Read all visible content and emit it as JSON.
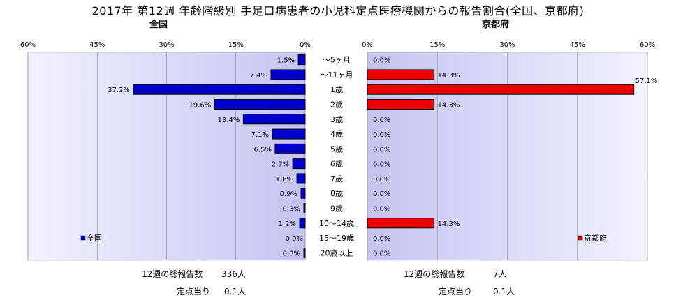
{
  "title": "2017年 第12週 年齢階級別 手足口病患者の小児科定点医療機関からの報告割合(全国、京都府)",
  "chart_data": [
    {
      "type": "bar",
      "orientation": "horizontal",
      "direction": "right-to-left",
      "subtitle": "全国",
      "legend": "全国",
      "legend_placement": "bottom-left",
      "color": "#0000cc",
      "xlim": [
        0,
        60
      ],
      "ticks": [
        "60%",
        "45%",
        "30%",
        "15%",
        "0%"
      ],
      "tick_values": [
        60,
        45,
        30,
        15,
        0
      ],
      "values": [
        1.5,
        7.4,
        37.2,
        19.6,
        13.4,
        7.1,
        6.5,
        2.7,
        1.8,
        0.9,
        0.3,
        1.2,
        0.0,
        0.3
      ],
      "value_labels": [
        "1.5%",
        "7.4%",
        "37.2%",
        "19.6%",
        "13.4%",
        "7.1%",
        "6.5%",
        "2.7%",
        "1.8%",
        "0.9%",
        "0.3%",
        "1.2%",
        "0.0%",
        "0.3%"
      ]
    },
    {
      "type": "bar",
      "orientation": "horizontal",
      "direction": "left-to-right",
      "subtitle": "京都府",
      "legend": "京都府",
      "legend_placement": "bottom-right",
      "color": "#ee0000",
      "xlim": [
        0,
        60
      ],
      "ticks": [
        "0%",
        "15%",
        "30%",
        "45%",
        "60%"
      ],
      "tick_values": [
        0,
        15,
        30,
        45,
        60
      ],
      "values": [
        0.0,
        14.3,
        57.1,
        14.3,
        0.0,
        0.0,
        0.0,
        0.0,
        0.0,
        0.0,
        0.0,
        14.3,
        0.0,
        0.0
      ],
      "value_labels": [
        "0.0%",
        "14.3%",
        "57.1%",
        "14.3%",
        "0.0%",
        "0.0%",
        "0.0%",
        "0.0%",
        "0.0%",
        "0.0%",
        "0.0%",
        "14.3%",
        "0.0%",
        "0.0%"
      ]
    }
  ],
  "categories": [
    "～5ヶ月",
    "～11ヶ月",
    "1歳",
    "2歳",
    "3歳",
    "4歳",
    "5歳",
    "6歳",
    "7歳",
    "8歳",
    "9歳",
    "10～14歳",
    "15～19歳",
    "20歳以上"
  ],
  "footer": {
    "national": {
      "total_label": "12週の総報告数",
      "total_value": "336人",
      "per_label": "定点当り",
      "per_value": "0.1人"
    },
    "kyoto": {
      "total_label": "12週の総報告数",
      "total_value": "7人",
      "per_label": "定点当り",
      "per_value": "0.1人"
    }
  }
}
